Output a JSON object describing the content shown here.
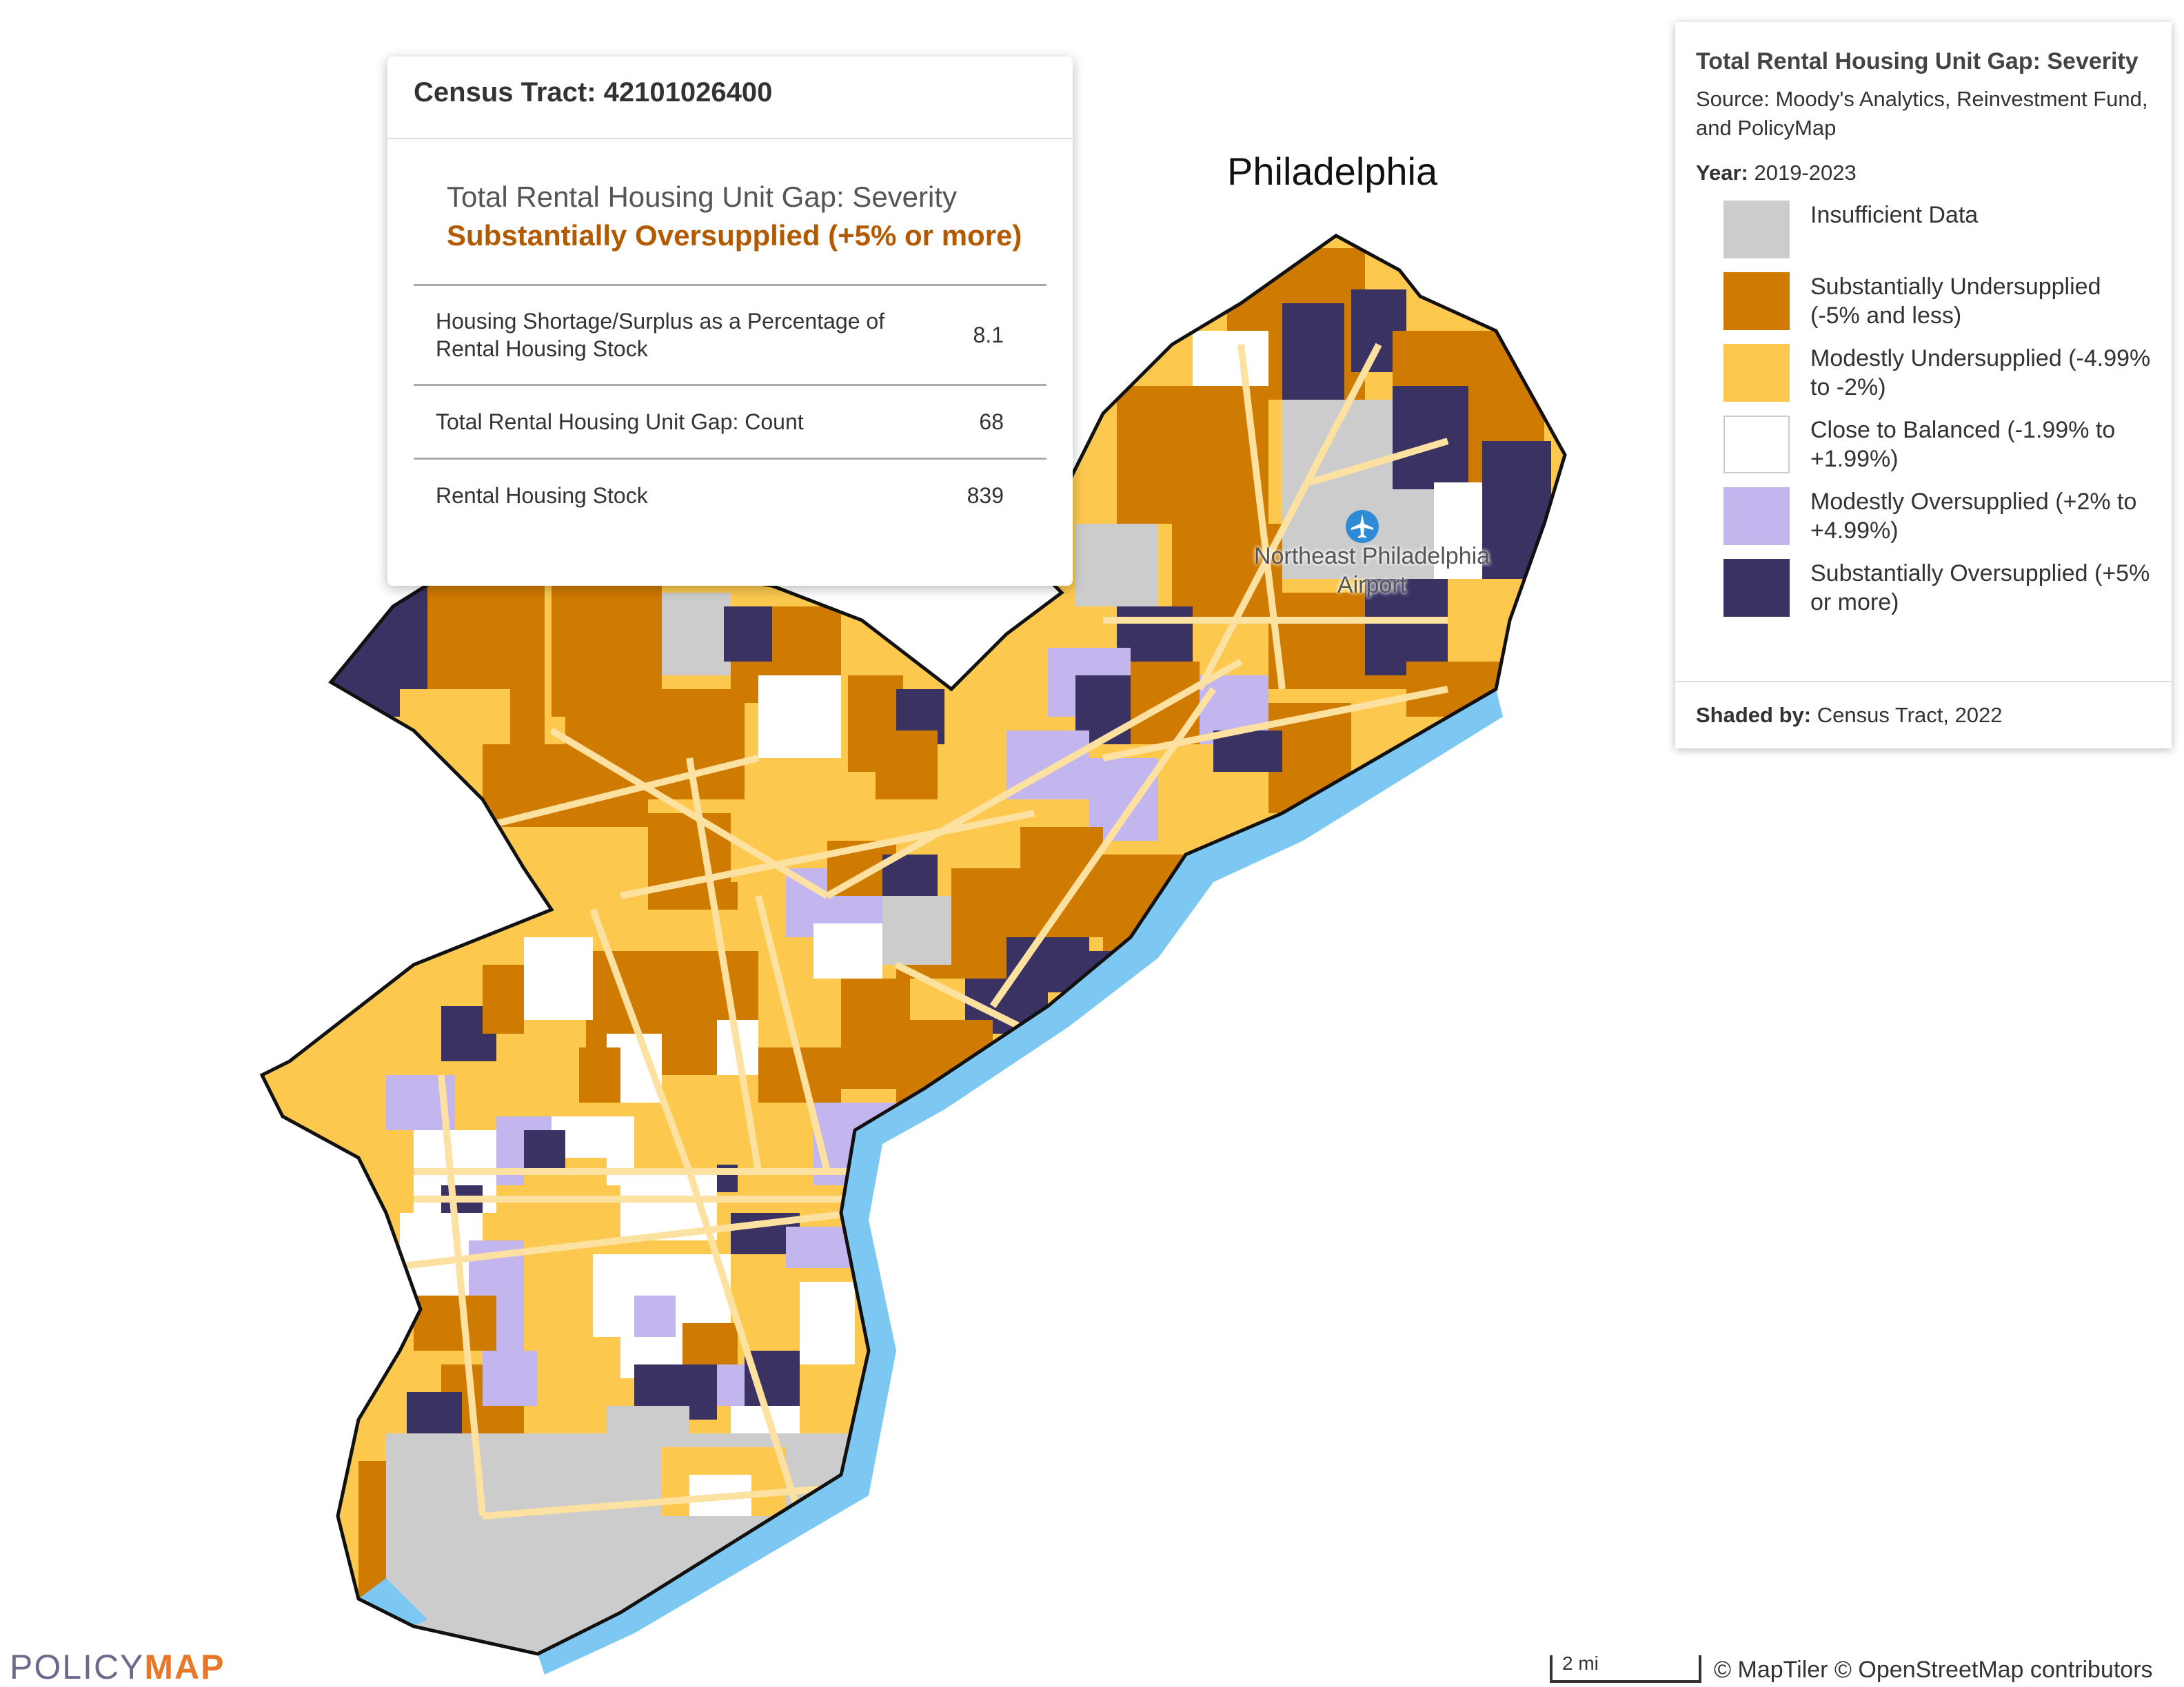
{
  "map": {
    "city_label": "Philadelphia",
    "airport_label": "Northeast Philadelphia Airport",
    "airport_icon": "airplane-icon",
    "colors": {
      "substantially_undersupplied": "#cf7a00",
      "modestly_undersupplied": "#fcc94e",
      "close_to_balanced": "#ffffff",
      "modestly_oversupplied": "#c3b6ee",
      "substantially_oversupplied": "#3b3264",
      "insufficient_data": "#cccccc",
      "water": "#7cc8f2",
      "roads": "#fde1a1"
    }
  },
  "popup": {
    "title": "Census Tract: 42101026400",
    "layer_name": "Total Rental Housing Unit Gap: Severity",
    "layer_value": "Substantially Oversupplied (+5% or more)",
    "rows": [
      {
        "label": "Housing Shortage/Surplus as a Percentage of Rental Housing Stock",
        "value": "8.1"
      },
      {
        "label": "Total Rental Housing Unit Gap: Count",
        "value": "68"
      },
      {
        "label": "Rental Housing Stock",
        "value": "839"
      }
    ]
  },
  "legend": {
    "title": "Total Rental Housing Unit Gap: Severity",
    "source": "Source: Moody's Analytics, Reinvestment Fund, and PolicyMap",
    "year_label": "Year:",
    "year_value": "2019-2023",
    "items": [
      {
        "label": "Insufficient Data",
        "color": "#cccccc"
      },
      {
        "label": "Substantially Undersupplied (-5% and less)",
        "color": "#cf7a00"
      },
      {
        "label": "Modestly Undersupplied (-4.99% to -2%)",
        "color": "#fcc94e"
      },
      {
        "label": "Close to Balanced (-1.99% to +1.99%)",
        "color": "#ffffff"
      },
      {
        "label": "Modestly Oversupplied (+2% to +4.99%)",
        "color": "#c3b6ee"
      },
      {
        "label": "Substantially Oversupplied (+5% or more)",
        "color": "#3b3264"
      }
    ],
    "shaded_label": "Shaded by:",
    "shaded_value": "Census Tract, 2022"
  },
  "footer": {
    "logo_part1": "POLICY",
    "logo_part2": "MAP",
    "scale_label": "2 mi",
    "attribution": "© MapTiler © OpenStreetMap contributors"
  }
}
